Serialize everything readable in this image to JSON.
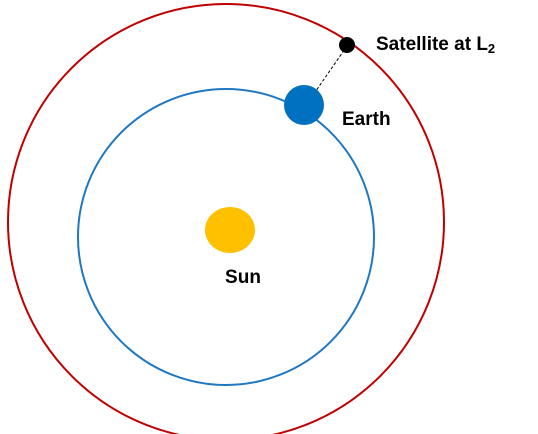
{
  "labels": {
    "sun": "Sun",
    "earth": "Earth",
    "satellite": {
      "text": "Satellite at L",
      "subscript": "2"
    }
  }
}
